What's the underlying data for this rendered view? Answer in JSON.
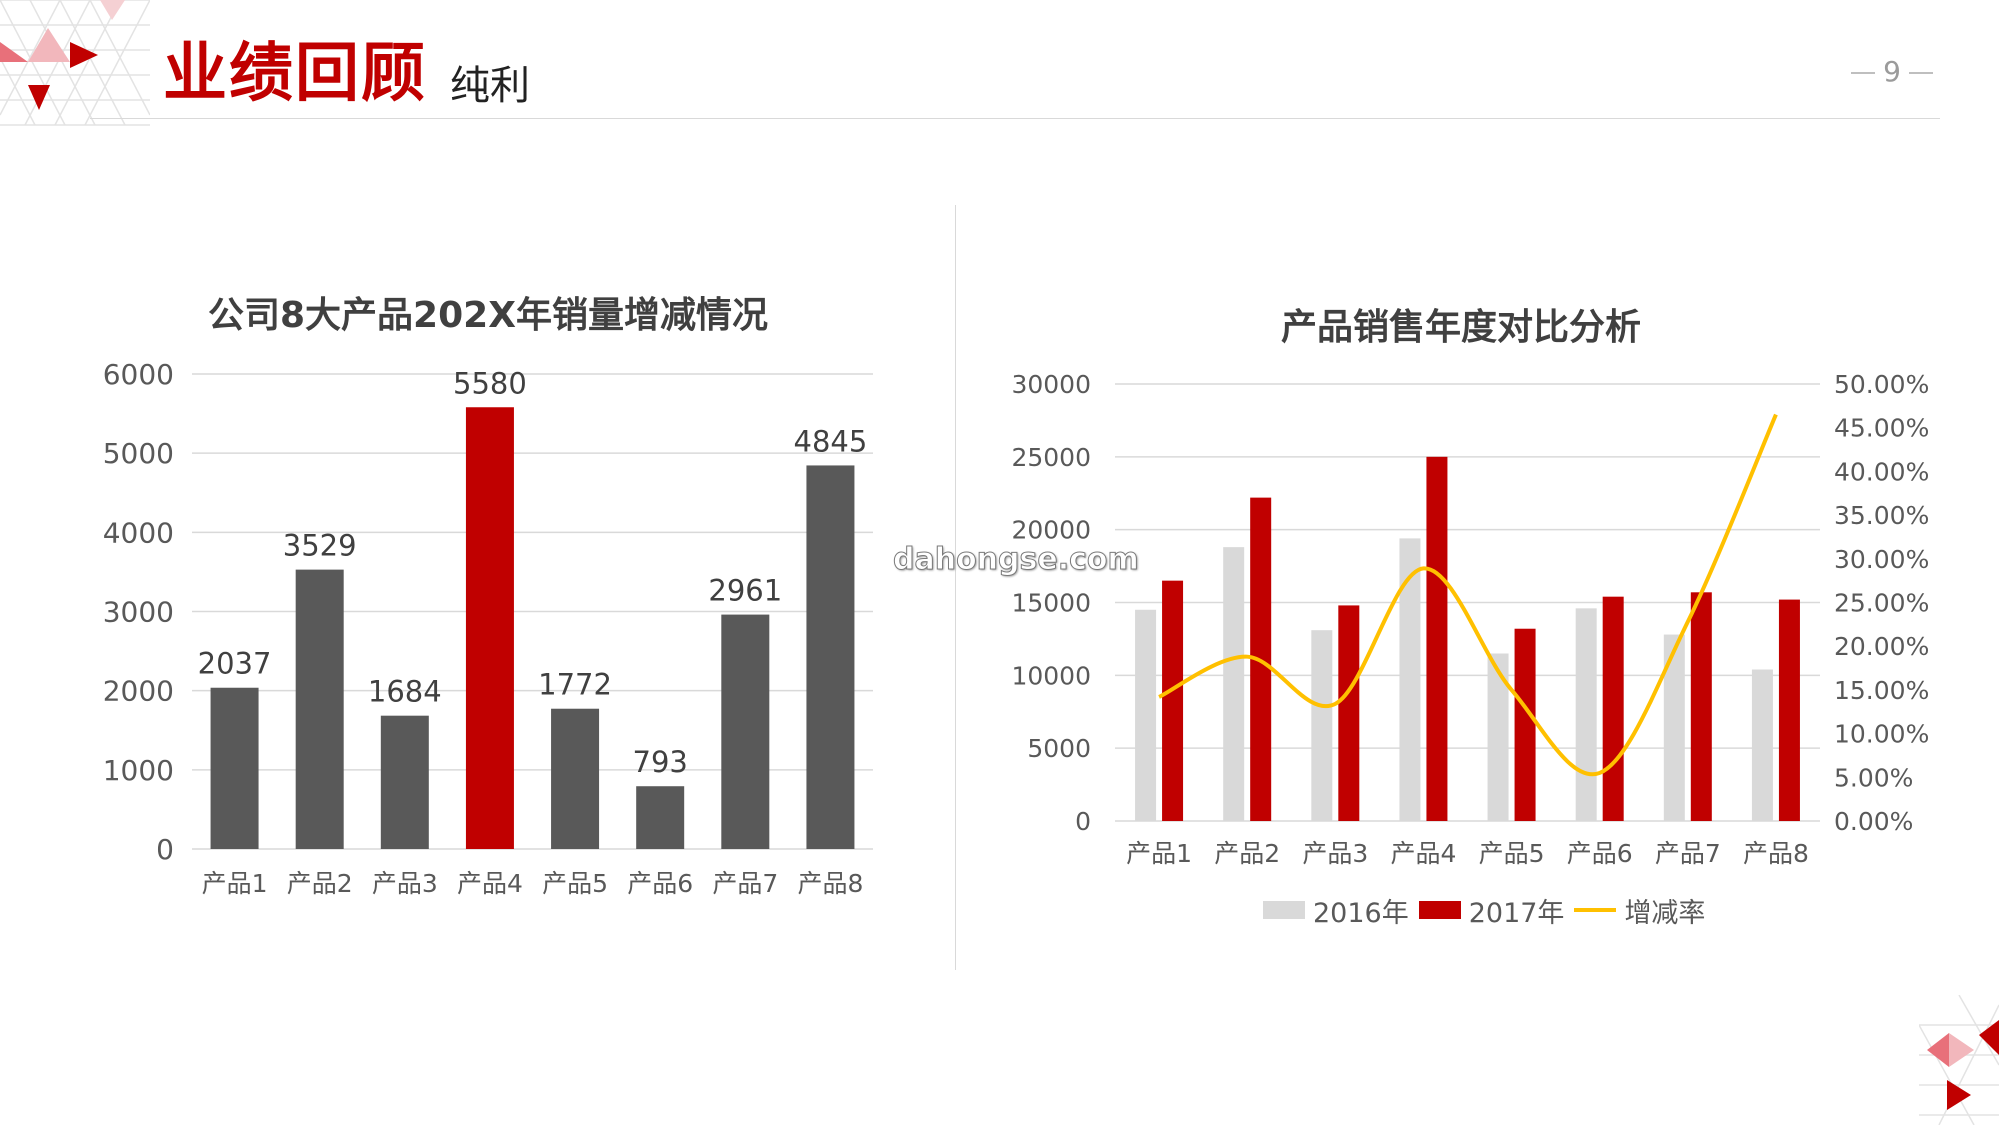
{
  "header": {
    "title": "业绩回顾",
    "subtitle": "纯利",
    "page_number": "9"
  },
  "colors": {
    "accent": "#c00000",
    "dark_bar": "#595959",
    "light_bar": "#d9d9d9",
    "line": "#ffc000"
  },
  "watermark": "dahongse.com",
  "chart_data": [
    {
      "type": "bar",
      "title": "公司8大产品202X年销量增减情况",
      "categories": [
        "产品1",
        "产品2",
        "产品3",
        "产品4",
        "产品5",
        "产品6",
        "产品7",
        "产品8"
      ],
      "values": [
        2037,
        3529,
        1684,
        5580,
        1772,
        793,
        2961,
        4845
      ],
      "highlight_index": 3,
      "ylim": [
        0,
        6000
      ],
      "yticks": [
        0,
        1000,
        2000,
        3000,
        4000,
        5000,
        6000
      ],
      "data_labels": true,
      "grid": true
    },
    {
      "type": "bar+line",
      "title": "产品销售年度对比分析",
      "categories": [
        "产品1",
        "产品2",
        "产品3",
        "产品4",
        "产品5",
        "产品6",
        "产品7",
        "产品8"
      ],
      "series": [
        {
          "name": "2016年",
          "type": "bar",
          "axis": "left",
          "values": [
            14500,
            18800,
            13100,
            19400,
            11500,
            14600,
            12800,
            10400
          ]
        },
        {
          "name": "2017年",
          "type": "bar",
          "axis": "left",
          "values": [
            16500,
            22200,
            14800,
            25000,
            13200,
            15400,
            15700,
            15200
          ]
        },
        {
          "name": "增减率",
          "type": "line",
          "axis": "right",
          "values": [
            14.2,
            18.8,
            13.4,
            28.9,
            15.0,
            5.5,
            22.8,
            46.5
          ]
        }
      ],
      "ylim_left": [
        0,
        30000
      ],
      "yticks_left": [
        0,
        5000,
        10000,
        15000,
        20000,
        25000,
        30000
      ],
      "ylim_right": [
        0,
        50
      ],
      "yticks_right": [
        "0.00%",
        "5.00%",
        "10.00%",
        "15.00%",
        "20.00%",
        "25.00%",
        "30.00%",
        "35.00%",
        "40.00%",
        "45.00%",
        "50.00%"
      ],
      "legend_position": "bottom",
      "grid": true
    }
  ]
}
